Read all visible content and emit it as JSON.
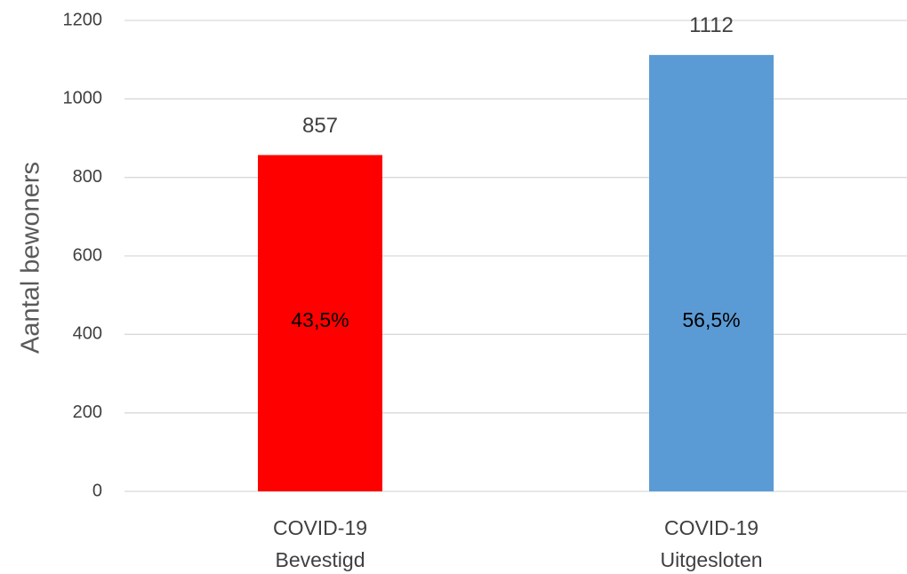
{
  "chart_data": {
    "type": "bar",
    "y_label": "Aantal bewoners",
    "categories": [
      [
        "COVID-19",
        "Bevestigd"
      ],
      [
        "COVID-19",
        "Uitgesloten"
      ]
    ],
    "values": [
      857,
      1112
    ],
    "colors": [
      "#ff0000",
      "#5b9bd5"
    ],
    "share_labels": [
      "43,5%",
      "56,5%"
    ],
    "ylim": [
      0,
      1200
    ],
    "yticks": [
      0,
      200,
      400,
      600,
      800,
      1000,
      1200
    ],
    "grid": true
  }
}
